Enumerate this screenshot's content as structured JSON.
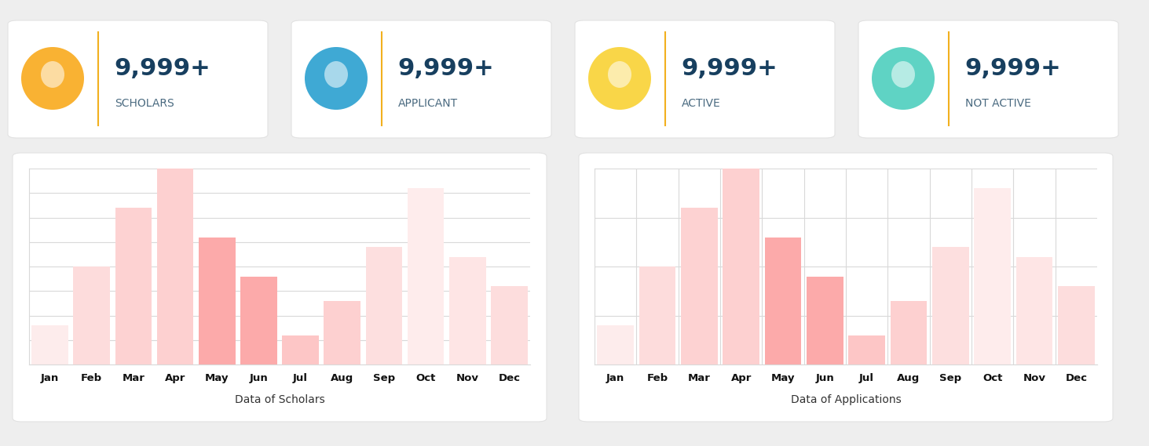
{
  "cards": [
    {
      "value": "9,999+",
      "label": "SCHOLARS"
    },
    {
      "value": "9,999+",
      "label": "APPLICANT"
    },
    {
      "value": "9,999+",
      "label": "ACTIVE"
    },
    {
      "value": "9,999+",
      "label": "NOT ACTIVE"
    }
  ],
  "chart_data": [
    {
      "type": "bar",
      "x_label": "Data of Scholars",
      "categories": [
        "Jan",
        "Feb",
        "Mar",
        "Apr",
        "May",
        "Jun",
        "Jul",
        "Aug",
        "Sep",
        "Oct",
        "Nov",
        "Dec"
      ],
      "values": [
        1.6,
        4.0,
        6.4,
        8.0,
        5.2,
        3.6,
        1.2,
        2.6,
        4.8,
        7.2,
        4.4,
        3.2
      ],
      "colors": [
        "#fdecec",
        "#fddcdc",
        "#fdd2d2",
        "#fdd0d0",
        "#fcaaaa",
        "#fcaaaa",
        "#fdc6c6",
        "#fdd0d0",
        "#fddfdf",
        "#feecec",
        "#fee5e5",
        "#fddddd"
      ],
      "ylim": [
        0,
        8
      ],
      "yticks": [
        0,
        1,
        2,
        3,
        4,
        5,
        6,
        7,
        8
      ],
      "grid": "y",
      "tick_labels": "x"
    },
    {
      "type": "bar",
      "x_label": "Data of Applications",
      "categories": [
        "Jan",
        "Feb",
        "Mar",
        "Apr",
        "May",
        "Jun",
        "Jul",
        "Aug",
        "Sep",
        "Oct",
        "Nov",
        "Dec"
      ],
      "values": [
        1.6,
        4.0,
        6.4,
        8.0,
        5.2,
        3.6,
        1.2,
        2.6,
        4.8,
        7.2,
        4.4,
        3.2
      ],
      "colors": [
        "#fdecec",
        "#fddcdc",
        "#fdd2d2",
        "#fdd0d0",
        "#fcaaaa",
        "#fcaaaa",
        "#fdc6c6",
        "#fdd0d0",
        "#fddfdf",
        "#feecec",
        "#fee5e5",
        "#fddddd"
      ],
      "ylim": [
        0,
        8
      ],
      "yticks": [
        0,
        2,
        4,
        6,
        8
      ],
      "grid": "both",
      "tick_labels": "x"
    }
  ]
}
